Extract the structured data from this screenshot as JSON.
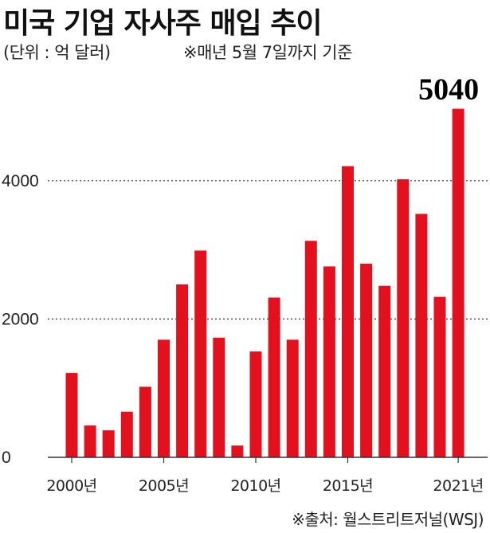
{
  "header": {
    "title": "미국 기업 자사주 매입 추이",
    "unit": "(단위 : 억 달러)",
    "note": "※매년 5월 7일까지 기준"
  },
  "footer": {
    "source": "※출처: 월스트리트저널(WSJ)"
  },
  "colors": {
    "bar": "#e3101e",
    "axis": "#333333",
    "grid": "#333333"
  },
  "chart_data": {
    "type": "bar",
    "categories": [
      "2000",
      "2001",
      "2002",
      "2003",
      "2004",
      "2005",
      "2006",
      "2007",
      "2008",
      "2009",
      "2010",
      "2011",
      "2012",
      "2013",
      "2014",
      "2015",
      "2016",
      "2017",
      "2018",
      "2019",
      "2020",
      "2021"
    ],
    "values": [
      1220,
      460,
      390,
      660,
      1020,
      1700,
      2500,
      2990,
      1730,
      170,
      1530,
      2310,
      1700,
      3130,
      2760,
      4210,
      2800,
      2480,
      4020,
      3520,
      2320,
      5040
    ],
    "ylim": [
      0,
      5000
    ],
    "yticks": [
      {
        "value": 0,
        "label": "0"
      },
      {
        "value": 2000,
        "label": "2000"
      },
      {
        "value": 4000,
        "label": "4000"
      }
    ],
    "xticks": [
      {
        "index": 0,
        "label": "2000년"
      },
      {
        "index": 5,
        "label": "2005년"
      },
      {
        "index": 10,
        "label": "2010년"
      },
      {
        "index": 15,
        "label": "2015년"
      },
      {
        "index": 21,
        "label": "2021년"
      }
    ],
    "gridlines": [
      2000,
      4000
    ],
    "grid_style": "dotted",
    "data_labels": [
      {
        "index": 21,
        "label": "5040"
      }
    ]
  }
}
